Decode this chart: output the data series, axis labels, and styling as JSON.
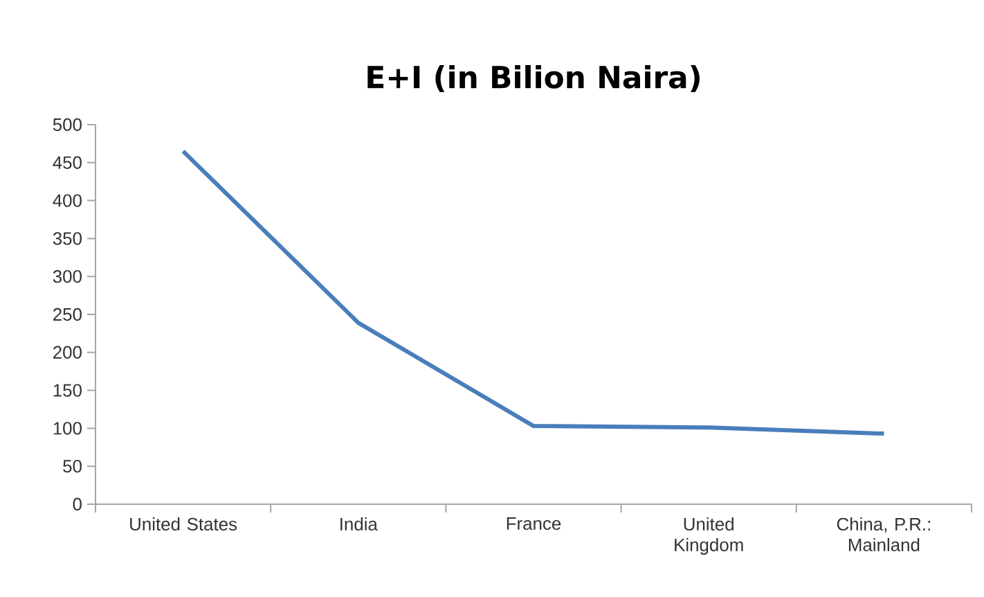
{
  "chart_data": {
    "type": "line",
    "title": "E+I (in Bilion Naira)",
    "categories": [
      "United States",
      "India",
      "France",
      "United Kingdom",
      "China, P.R.: Mainland"
    ],
    "series": [
      {
        "color": "#4a7ebb",
        "values": [
          465,
          239,
          103,
          101,
          93
        ]
      }
    ],
    "ylim": [
      0,
      500
    ],
    "yticks": [
      0,
      50,
      100,
      150,
      200,
      250,
      300,
      350,
      400,
      450,
      500
    ],
    "marker": "none",
    "line_style": "solid"
  }
}
